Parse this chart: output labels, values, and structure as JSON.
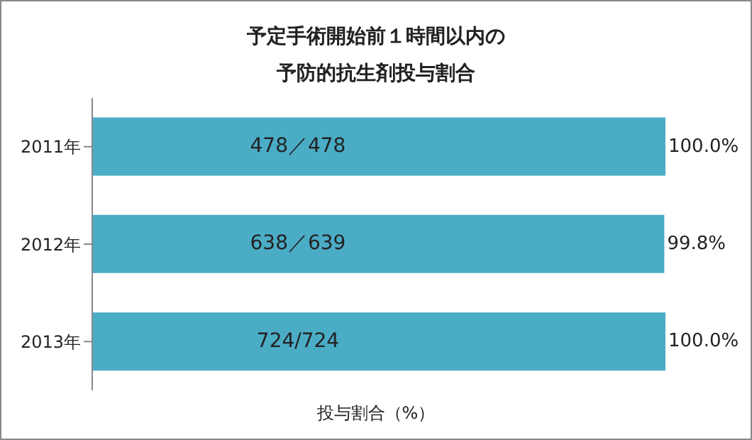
{
  "chart_data": {
    "type": "bar",
    "orientation": "horizontal",
    "title": "予定手術開始前１時間以内の予防的抗生剤投与割合",
    "xlabel": "投与割合（%）",
    "categories": [
      "2011年",
      "2012年",
      "2013年"
    ],
    "series": [
      {
        "color": "#4bacc6",
        "values": [
          100,
          99.8,
          100
        ],
        "value_labels": [
          "100.0%",
          "99.8%",
          "100.0%"
        ]
      }
    ],
    "tick_labels": "y",
    "grid": false,
    "annotations": [
      "478／478",
      "638／639",
      "724/724"
    ]
  }
}
